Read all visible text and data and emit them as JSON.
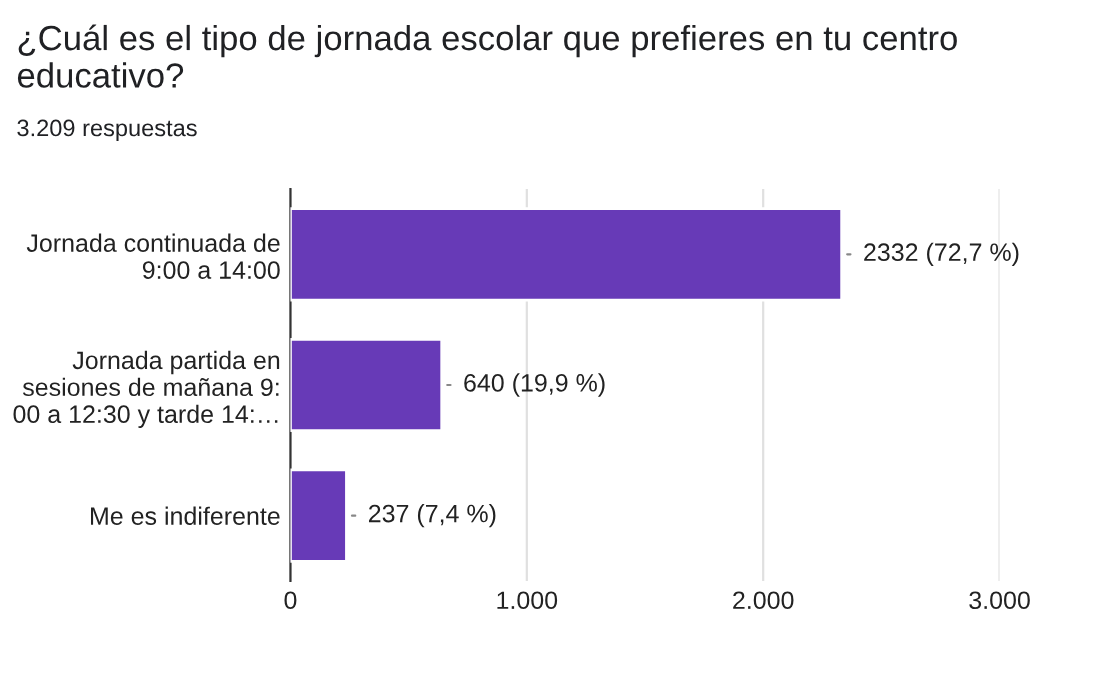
{
  "chart_data": {
    "type": "bar",
    "orientation": "horizontal",
    "title": "¿Cuál es el tipo de jornada escolar que prefieres en tu centro educativo?",
    "subtitle": "3.209 respuestas",
    "categories": [
      "Jornada continuada de\n9:00 a 14:00",
      "Jornada partida en\nsesiones de mañana 9:\n00 a 12:30 y tarde 14:…",
      "Me es indiferente"
    ],
    "values": [
      2332,
      640,
      237
    ],
    "value_labels": [
      "2332 (72,7 %)",
      "640 (19,9 %)",
      "237 (7,4 %)"
    ],
    "color": "#673ab7",
    "xlim": [
      0,
      3000
    ],
    "xticks": [
      0,
      {
        "value": 1000,
        "label": "1.000"
      },
      {
        "value": 2000,
        "label": "2.000"
      },
      {
        "value": 3000,
        "label": "3.000"
      }
    ],
    "grid": "x"
  }
}
